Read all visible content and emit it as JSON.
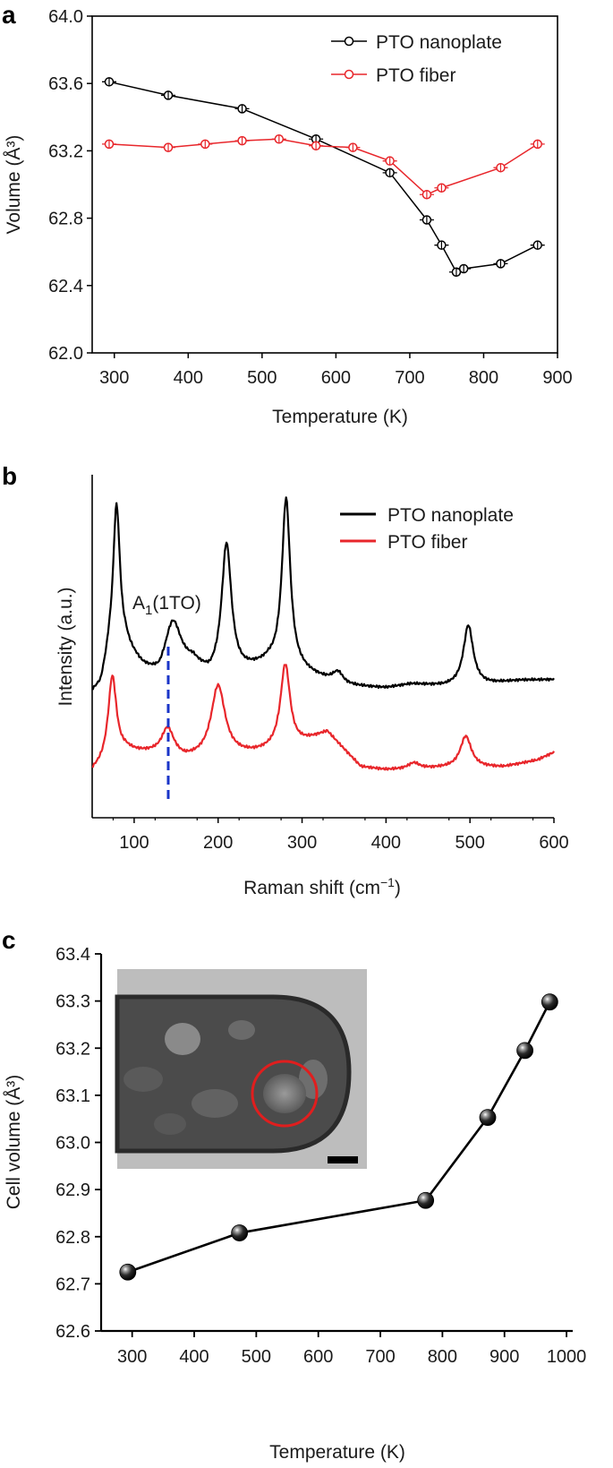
{
  "chart_data": [
    {
      "panel": "a",
      "type": "line",
      "xlabel": "Temperature (K)",
      "ylabel": "Volume (Å³)",
      "xlim": [
        270,
        900
      ],
      "ylim": [
        62.0,
        64.0
      ],
      "xticks": [
        "300",
        "400",
        "500",
        "600",
        "700",
        "800",
        "900"
      ],
      "yticks": [
        "62.0",
        "62.4",
        "62.8",
        "63.2",
        "63.6",
        "64.0"
      ],
      "legend": "top-right",
      "series": [
        {
          "name": "PTO nanoplate",
          "color": "#000000",
          "x": [
            293,
            373,
            473,
            573,
            673,
            723,
            743,
            763,
            773,
            823,
            873
          ],
          "y": [
            63.61,
            63.53,
            63.45,
            63.27,
            63.07,
            62.79,
            62.64,
            62.48,
            62.5,
            62.53,
            62.64
          ]
        },
        {
          "name": "PTO fiber",
          "color": "#e8262b",
          "x": [
            293,
            373,
            423,
            473,
            523,
            573,
            623,
            673,
            723,
            743,
            823,
            873
          ],
          "y": [
            63.24,
            63.22,
            63.24,
            63.26,
            63.27,
            63.23,
            63.22,
            63.14,
            62.94,
            62.98,
            63.1,
            63.24
          ]
        }
      ]
    },
    {
      "panel": "b",
      "type": "line",
      "xlabel": "Raman shift (cm",
      "xlabel_sup": "−1",
      "xlabel_end": ")",
      "ylabel": "Intensity (a.u.)",
      "xlim": [
        50,
        600
      ],
      "xticks": [
        "100",
        "200",
        "300",
        "400",
        "500",
        "600"
      ],
      "legend": "top-right",
      "annotation": {
        "label": "A",
        "sub": "1",
        "rest": "(1TO)",
        "x": 140
      },
      "series": [
        {
          "name": "PTO nanoplate",
          "color": "#000000",
          "baseline_points": [
            [
              50,
              0
            ],
            [
              60,
              0.05
            ],
            [
              70,
              0.35
            ],
            [
              90,
              0.45
            ],
            [
              110,
              0.25
            ],
            [
              130,
              0.12
            ],
            [
              170,
              0.28
            ],
            [
              190,
              0.15
            ],
            [
              230,
              0.22
            ],
            [
              260,
              0.3
            ],
            [
              300,
              0.22
            ],
            [
              350,
              0.08
            ],
            [
              400,
              0.06
            ],
            [
              430,
              0.1
            ],
            [
              470,
              0.08
            ],
            [
              520,
              0.1
            ],
            [
              560,
              0.14
            ],
            [
              600,
              0.15
            ]
          ],
          "peaks": [
            [
              79,
              1.55,
              5
            ],
            [
              146,
              0.55,
              12
            ],
            [
              210,
              1.35,
              7
            ],
            [
              281,
              1.75,
              6
            ],
            [
              343,
              0.12,
              8
            ],
            [
              498,
              0.62,
              7
            ]
          ]
        },
        {
          "name": "PTO fiber",
          "color": "#e8262b",
          "baseline_points": [
            [
              50,
              0
            ],
            [
              60,
              0.05
            ],
            [
              90,
              0.2
            ],
            [
              120,
              0.18
            ],
            [
              160,
              0.12
            ],
            [
              240,
              0.18
            ],
            [
              290,
              0.25
            ],
            [
              330,
              0.4
            ],
            [
              370,
              0.05
            ],
            [
              400,
              0.02
            ],
            [
              470,
              0.04
            ],
            [
              540,
              0.05
            ],
            [
              580,
              0.12
            ],
            [
              600,
              0.2
            ]
          ],
          "peaks": [
            [
              74,
              0.85,
              6
            ],
            [
              140,
              0.28,
              9
            ],
            [
              200,
              0.72,
              10
            ],
            [
              280,
              0.85,
              7
            ],
            [
              433,
              0.06,
              8
            ],
            [
              495,
              0.32,
              8
            ]
          ]
        }
      ]
    },
    {
      "panel": "c",
      "type": "line",
      "xlabel": "Temperature (K)",
      "ylabel": "Cell volume (Å³)",
      "xlim": [
        250,
        1010
      ],
      "ylim": [
        62.6,
        63.4
      ],
      "xticks": [
        "300",
        "400",
        "500",
        "600",
        "700",
        "800",
        "900",
        "1000"
      ],
      "yticks": [
        "62.6",
        "62.7",
        "62.8",
        "62.9",
        "63.0",
        "63.1",
        "63.2",
        "63.3",
        "63.4"
      ],
      "series": [
        {
          "name": "Cell volume",
          "color": "#000000",
          "x": [
            293,
            473,
            773,
            873,
            933,
            973
          ],
          "y": [
            62.725,
            62.808,
            62.877,
            63.053,
            63.195,
            63.298
          ]
        }
      ],
      "inset": "TEM image of fiber tip"
    }
  ],
  "panels": {
    "a": "a",
    "b": "b",
    "c": "c"
  }
}
